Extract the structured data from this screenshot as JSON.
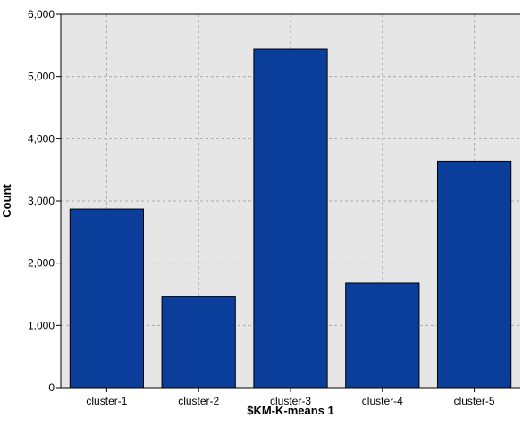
{
  "chart_data": {
    "type": "bar",
    "title": "",
    "xlabel": "$KM-K-means 1",
    "ylabel": "Count",
    "categories": [
      "cluster-1",
      "cluster-2",
      "cluster-3",
      "cluster-4",
      "cluster-5"
    ],
    "values": [
      2870,
      1470,
      5440,
      1680,
      3640
    ],
    "ylim": [
      0,
      6000
    ],
    "yticks": [
      {
        "value": 0,
        "label": "0"
      },
      {
        "value": 1000,
        "label": "1,000"
      },
      {
        "value": 2000,
        "label": "2,000"
      },
      {
        "value": 3000,
        "label": "3,000"
      },
      {
        "value": 4000,
        "label": "4,000"
      },
      {
        "value": 5000,
        "label": "5,000"
      },
      {
        "value": 6000,
        "label": "6,000"
      }
    ],
    "grid": true,
    "colors": {
      "bar": "#0b3e9b",
      "bar_edge": "#000000",
      "plot_background": "#e6e6e6",
      "gridline": "#a9a9a9",
      "axis": "#000000",
      "text": "#000000"
    }
  }
}
